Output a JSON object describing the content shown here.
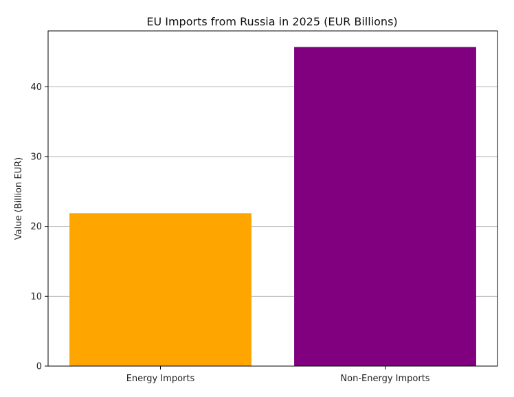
{
  "chart_data": {
    "type": "bar",
    "title": "EU Imports from Russia in 2025 (EUR Billions)",
    "xlabel": "",
    "ylabel": "Value (Billion EUR)",
    "categories": [
      "Energy Imports",
      "Non-Energy Imports"
    ],
    "values": [
      21.9,
      45.7
    ],
    "colors": [
      "#FFA500",
      "#800080"
    ],
    "ylim": [
      0,
      48
    ],
    "yticks": [
      0,
      10,
      20,
      30,
      40
    ],
    "grid": "y-axis major",
    "legend": "none"
  }
}
